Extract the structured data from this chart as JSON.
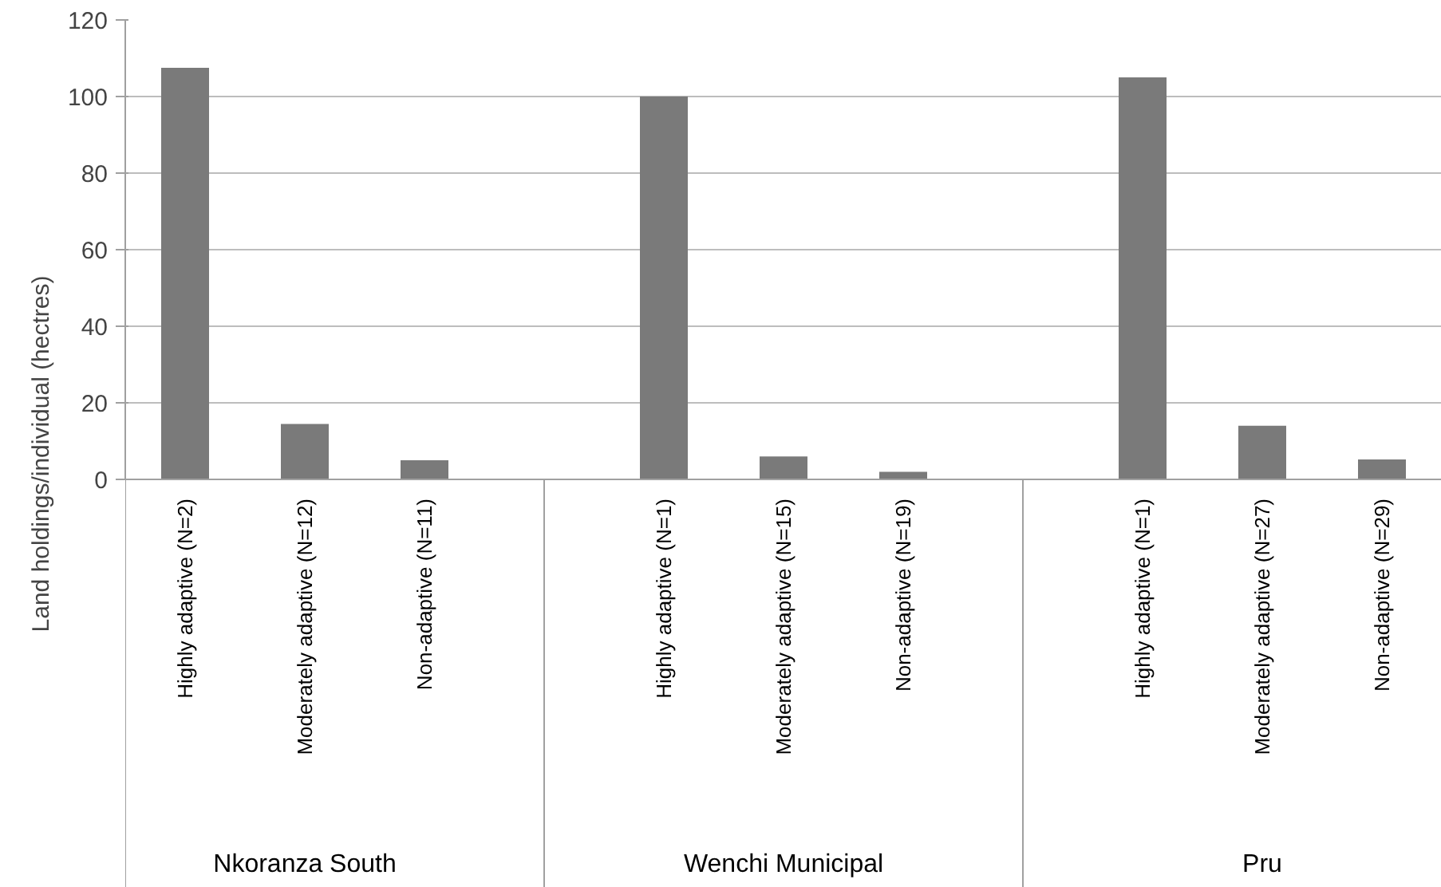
{
  "chart_data": {
    "type": "bar",
    "categories": [
      "Highly adaptive (N=2)",
      "Moderately adaptive (N=12)",
      "Non-adaptive (N=11)",
      null,
      "Highly adaptive (N=1)",
      "Moderately adaptive (N=15)",
      "Non-adaptive (N=19)",
      null,
      "Highly adaptive (N=1)",
      "Moderately adaptive (N=27)",
      "Non-adaptive (N=29)"
    ],
    "values": [
      107.5,
      14.5,
      5,
      null,
      100,
      6,
      2,
      null,
      105,
      14,
      5.2
    ],
    "color": "#7a7a7a",
    "ylabel": "Land holdings/individual (hectres)",
    "ylim": [
      0,
      120
    ],
    "yticks": [
      0,
      20,
      40,
      60,
      80,
      100,
      120
    ],
    "grid": "y",
    "annotations": [
      "Nkoranza South",
      "Wenchi Municipal",
      "Pru"
    ]
  }
}
